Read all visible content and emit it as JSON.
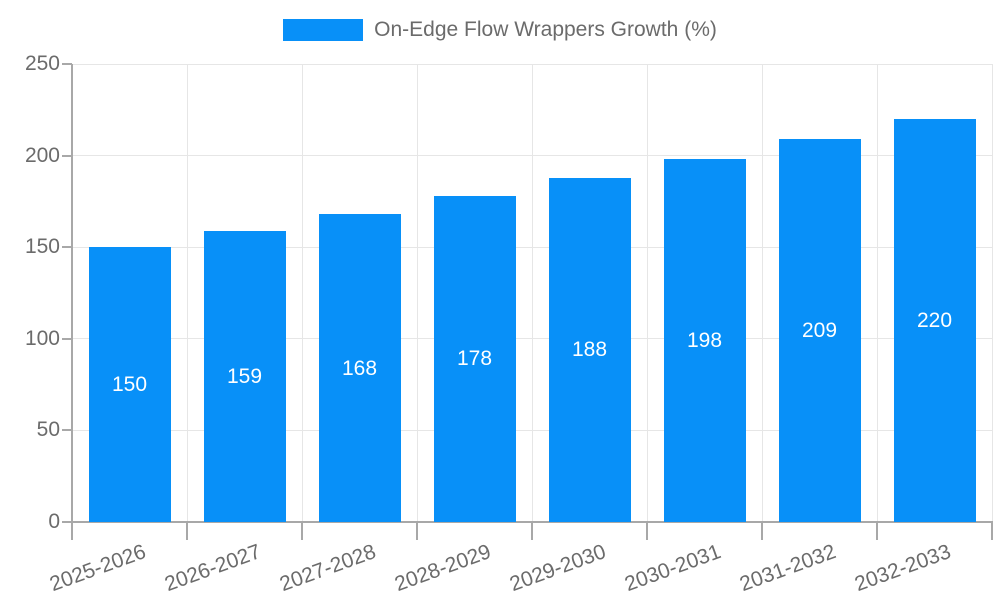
{
  "chart_data": {
    "type": "bar",
    "title": "",
    "legend": {
      "position": "top",
      "label": "On-Edge Flow Wrappers Growth (%)"
    },
    "categories": [
      "2025-2026",
      "2026-2027",
      "2027-2028",
      "2028-2029",
      "2029-2030",
      "2030-2031",
      "2031-2032",
      "2032-2033"
    ],
    "values": [
      150,
      159,
      168,
      178,
      188,
      198,
      209,
      220
    ],
    "value_label_style": "white, centered inside bar",
    "xlabel": "",
    "ylabel": "",
    "ylim": [
      0,
      250
    ],
    "yticks": [
      0,
      50,
      100,
      150,
      200,
      250
    ],
    "grid": "horizontal and vertical light gray gridlines",
    "x_label_rotation_deg": -20,
    "colors": {
      "bar": "#0890F8",
      "axis_line": "#a8a8a8",
      "grid_line": "#e6e6e6",
      "tick_label_text": "#6b6b6b",
      "legend_text": "#6b6b6b",
      "bar_value_text": "#ffffff",
      "background": "#ffffff"
    }
  }
}
